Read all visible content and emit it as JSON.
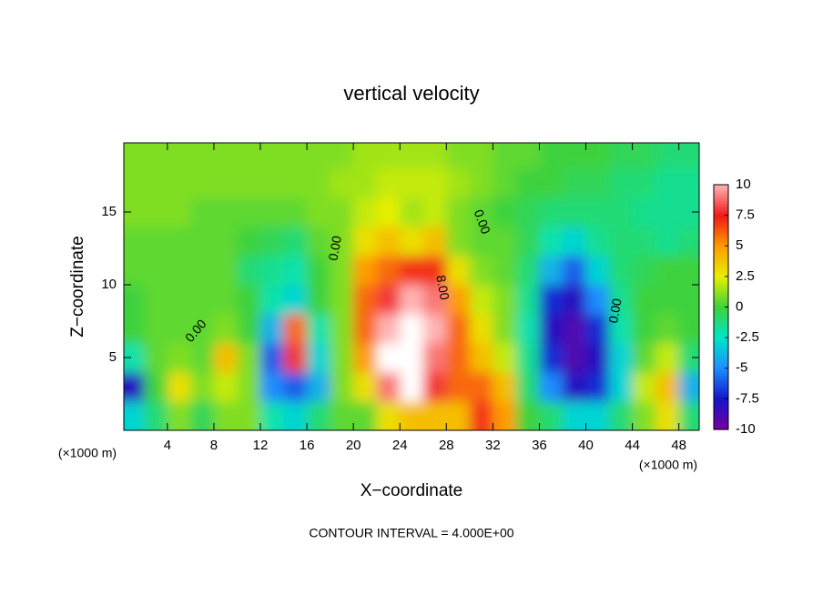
{
  "chart_data": {
    "type": "contourf",
    "title": "vertical velocity",
    "x_label": "X−coordinate",
    "y_label": "Z−coordinate",
    "x_unit": "(×1000 m)",
    "footer": "CONTOUR INTERVAL = 4.000E+00",
    "xlim": [
      0.25,
      49.75
    ],
    "ylim": [
      0,
      19.75
    ],
    "xticks": [
      4,
      8,
      12,
      16,
      20,
      24,
      28,
      32,
      36,
      40,
      44,
      48
    ],
    "yticks": [
      5,
      10,
      15
    ],
    "x": [
      1,
      3,
      5,
      7,
      9,
      11,
      13,
      15,
      17,
      19,
      21,
      23,
      25,
      27,
      29,
      31,
      33,
      35,
      37,
      39,
      41,
      43,
      45,
      47,
      49
    ],
    "y": [
      1,
      3,
      5,
      7,
      9,
      11,
      13,
      15,
      17,
      19
    ],
    "z": [
      [
        -3,
        -1,
        1,
        -0.5,
        1,
        1,
        -2,
        -3,
        -1,
        0.5,
        0.5,
        3,
        4,
        4,
        4,
        7,
        5,
        0,
        -1,
        -3,
        -3,
        -1,
        1,
        3,
        -1
      ],
      [
        -8,
        0,
        3,
        1,
        2,
        1,
        -5,
        -6,
        -4,
        1,
        3,
        9,
        11,
        8,
        6,
        6,
        4,
        -1,
        -5,
        -8,
        -7,
        -3,
        2,
        4,
        -4
      ],
      [
        -2,
        0.5,
        1,
        0.5,
        4,
        1,
        -6,
        8,
        -3,
        1,
        5,
        12,
        12,
        9,
        6,
        4,
        2,
        -1.5,
        -7,
        -9,
        -8,
        -3,
        0.5,
        2,
        -1
      ],
      [
        0,
        0.5,
        0.5,
        0.5,
        1,
        0,
        -4,
        6,
        -2,
        1,
        6,
        10,
        11,
        10,
        6,
        3,
        1,
        -2,
        -8,
        -9,
        -7,
        -2,
        0,
        0.5,
        0
      ],
      [
        0,
        0.5,
        0.5,
        0.5,
        0.5,
        0,
        -2,
        -3,
        0,
        1,
        6,
        8,
        10,
        9,
        5,
        2,
        1,
        -1.5,
        -7,
        -8,
        -5,
        -1.5,
        0,
        0,
        0
      ],
      [
        0.5,
        0.5,
        0.5,
        0.5,
        0.5,
        -1,
        -1.5,
        -2,
        0,
        1,
        5,
        6,
        7,
        7,
        3,
        1,
        0.5,
        -1,
        -4,
        -6,
        -3,
        -1,
        -0.5,
        0,
        0
      ],
      [
        0.5,
        0.5,
        0.5,
        0.5,
        0.5,
        0,
        -0.5,
        -1,
        0.5,
        1,
        3,
        4,
        3,
        4,
        1,
        0.5,
        0.5,
        -0.5,
        -2,
        -3,
        -1.5,
        -1,
        -1,
        -1.5,
        -1
      ],
      [
        1,
        1,
        1,
        0.5,
        0.5,
        0.5,
        0.5,
        0.5,
        1,
        1,
        2,
        2.5,
        1.5,
        2,
        1,
        0.5,
        0,
        -0.5,
        -1,
        -1,
        -1,
        -1,
        -1.5,
        -1.5,
        -1.5
      ],
      [
        1,
        1,
        1,
        1,
        1,
        1,
        1,
        1,
        1,
        1.5,
        1.5,
        2,
        2,
        2,
        1.5,
        1,
        0.5,
        0,
        0,
        -0.5,
        -0.5,
        -1,
        -1,
        -1.5,
        -1.5
      ],
      [
        1,
        1,
        1,
        1,
        1,
        1,
        1,
        1,
        1,
        1,
        1.5,
        1.5,
        1.5,
        1.5,
        1,
        1,
        0.5,
        0.5,
        0,
        0,
        0,
        -0.5,
        -0.5,
        -1,
        -1
      ]
    ],
    "colorbar_ticks": [
      10,
      7.5,
      5,
      2.5,
      0,
      -2.5,
      -5,
      -7.5,
      -10
    ],
    "colorbar_colors": [
      "#ffb4b4",
      "#f01818",
      "#ff9c00",
      "#e6f000",
      "#3cd23c",
      "#00e6c8",
      "#1e8cff",
      "#1414c8",
      "#7800a0"
    ],
    "over_color": "#ffffff",
    "contour_labels": [
      "0.00",
      "0.00",
      "0.00",
      "8.00",
      "0.00"
    ]
  }
}
